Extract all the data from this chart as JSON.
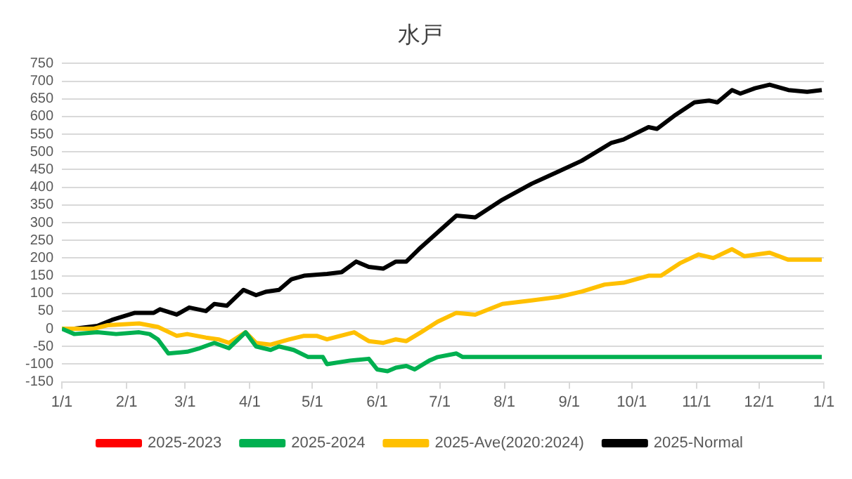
{
  "chart_data": {
    "type": "line",
    "title": "水戸",
    "xlim": [
      "2025-01-01",
      "2026-01-01"
    ],
    "xticks": [
      {
        "value": "2025-01-01",
        "label": "1/1"
      },
      {
        "value": "2025-02-01",
        "label": "2/1"
      },
      {
        "value": "2025-03-01",
        "label": "3/1"
      },
      {
        "value": "2025-04-01",
        "label": "4/1"
      },
      {
        "value": "2025-05-01",
        "label": "5/1"
      },
      {
        "value": "2025-06-01",
        "label": "6/1"
      },
      {
        "value": "2025-07-01",
        "label": "7/1"
      },
      {
        "value": "2025-08-01",
        "label": "8/1"
      },
      {
        "value": "2025-09-01",
        "label": "9/1"
      },
      {
        "value": "2025-10-01",
        "label": "10/1"
      },
      {
        "value": "2025-11-01",
        "label": "11/1"
      },
      {
        "value": "2025-12-01",
        "label": "12/1"
      },
      {
        "value": "2026-01-01",
        "label": "1/1"
      }
    ],
    "ylim": [
      -150,
      750
    ],
    "yticks": [
      -150,
      -100,
      -50,
      0,
      50,
      100,
      150,
      200,
      250,
      300,
      350,
      400,
      450,
      500,
      550,
      600,
      650,
      700,
      750
    ],
    "grid": "y",
    "legend": "bottom",
    "marker": "none",
    "line_style": "solid",
    "series": [
      {
        "name": "2025-2023",
        "color": "#ff0000"
      },
      {
        "name": "2025-2024",
        "color": "#00b050",
        "x": [
          "2025-01-01",
          "2025-01-07",
          "2025-01-18",
          "2025-01-27",
          "2025-02-07",
          "2025-02-12",
          "2025-02-16",
          "2025-02-21",
          "2025-03-02",
          "2025-03-08",
          "2025-03-15",
          "2025-03-22",
          "2025-03-30",
          "2025-04-04",
          "2025-04-11",
          "2025-04-15",
          "2025-04-22",
          "2025-04-29",
          "2025-05-06",
          "2025-05-08",
          "2025-05-19",
          "2025-05-28",
          "2025-06-01",
          "2025-06-06",
          "2025-06-10",
          "2025-06-15",
          "2025-06-19",
          "2025-06-26",
          "2025-06-30",
          "2025-07-09",
          "2025-07-12",
          "2025-08-09",
          "2025-09-18",
          "2025-10-28",
          "2025-12-07",
          "2025-12-31"
        ],
        "values": [
          0,
          -15,
          -10,
          -15,
          -10,
          -15,
          -30,
          -70,
          -65,
          -55,
          -40,
          -55,
          -10,
          -50,
          -60,
          -50,
          -60,
          -80,
          -80,
          -100,
          -90,
          -85,
          -115,
          -120,
          -110,
          -105,
          -115,
          -90,
          -80,
          -70,
          -80,
          -80,
          -80,
          -80,
          -80,
          -80
        ]
      },
      {
        "name": "2025-Ave(2020:2024)",
        "color": "#ffc000",
        "x": [
          "2025-01-01",
          "2025-01-16",
          "2025-01-23",
          "2025-02-07",
          "2025-02-16",
          "2025-02-25",
          "2025-03-02",
          "2025-03-11",
          "2025-03-17",
          "2025-03-22",
          "2025-03-30",
          "2025-04-04",
          "2025-04-11",
          "2025-04-20",
          "2025-04-27",
          "2025-05-03",
          "2025-05-08",
          "2025-05-21",
          "2025-05-28",
          "2025-06-04",
          "2025-06-10",
          "2025-06-15",
          "2025-06-22",
          "2025-06-30",
          "2025-07-09",
          "2025-07-18",
          "2025-07-31",
          "2025-08-14",
          "2025-08-27",
          "2025-09-07",
          "2025-09-18",
          "2025-09-27",
          "2025-10-09",
          "2025-10-15",
          "2025-10-24",
          "2025-11-02",
          "2025-11-09",
          "2025-11-18",
          "2025-11-24",
          "2025-12-06",
          "2025-12-15",
          "2025-12-24",
          "2025-12-31"
        ],
        "values": [
          0,
          0,
          10,
          15,
          5,
          -20,
          -15,
          -25,
          -30,
          -40,
          -10,
          -40,
          -45,
          -30,
          -20,
          -20,
          -30,
          -10,
          -35,
          -40,
          -30,
          -35,
          -10,
          20,
          45,
          40,
          70,
          80,
          90,
          105,
          125,
          130,
          150,
          150,
          185,
          210,
          200,
          225,
          205,
          215,
          195,
          195,
          195
        ]
      },
      {
        "name": "2025-Normal",
        "color": "#000000",
        "x": [
          "2025-01-01",
          "2025-01-07",
          "2025-01-18",
          "2025-01-25",
          "2025-02-05",
          "2025-02-14",
          "2025-02-17",
          "2025-02-25",
          "2025-03-03",
          "2025-03-11",
          "2025-03-15",
          "2025-03-21",
          "2025-03-29",
          "2025-04-04",
          "2025-04-09",
          "2025-04-15",
          "2025-04-21",
          "2025-04-27",
          "2025-05-08",
          "2025-05-15",
          "2025-05-22",
          "2025-05-28",
          "2025-06-04",
          "2025-06-10",
          "2025-06-15",
          "2025-06-21",
          "2025-07-09",
          "2025-07-18",
          "2025-07-31",
          "2025-08-14",
          "2025-08-27",
          "2025-09-07",
          "2025-09-21",
          "2025-09-27",
          "2025-10-09",
          "2025-10-13",
          "2025-10-22",
          "2025-10-31",
          "2025-11-07",
          "2025-11-11",
          "2025-11-18",
          "2025-11-22",
          "2025-11-29",
          "2025-12-06",
          "2025-12-15",
          "2025-12-24",
          "2025-12-31"
        ],
        "values": [
          0,
          0,
          8,
          25,
          45,
          45,
          55,
          40,
          60,
          50,
          70,
          65,
          110,
          95,
          105,
          110,
          140,
          150,
          155,
          160,
          190,
          175,
          170,
          190,
          190,
          225,
          320,
          315,
          365,
          410,
          445,
          475,
          525,
          535,
          570,
          565,
          605,
          640,
          645,
          640,
          675,
          665,
          680,
          690,
          675,
          670,
          675
        ]
      }
    ]
  }
}
